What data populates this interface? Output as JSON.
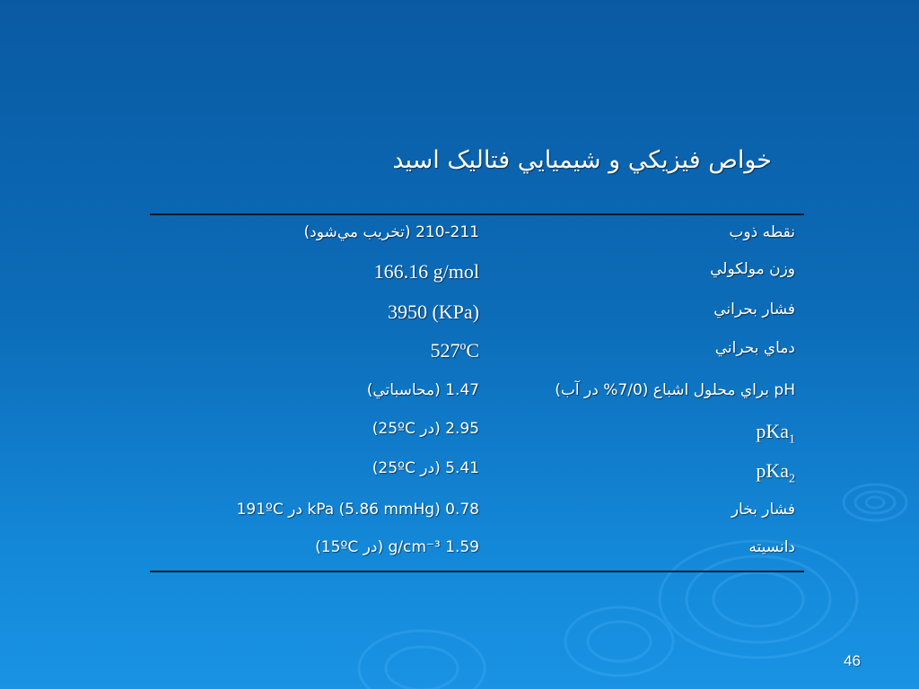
{
  "slide": {
    "title": "خواص فيزيكي و شيميايي فتاليک اسيد",
    "page_number": "46",
    "background_colors": [
      "#0a5aa3",
      "#1a93e4"
    ],
    "rows": [
      {
        "label": "نقطه ذوب",
        "value": "210-211 (تخريب مي‌شود)"
      },
      {
        "label": "وزن مولكولي",
        "value": "166.16 g/mol"
      },
      {
        "label": "فشار بحراني",
        "value": "3950 (KPa)"
      },
      {
        "label": "دماي بحراني",
        "value": "527ºC"
      },
      {
        "label": "pH براي محلول اشباع (7/0% در آب)",
        "value": "1.47 (محاسباتي)"
      },
      {
        "label": "pKa",
        "label_sub": "1",
        "value": "2.95 (در 25ºC)"
      },
      {
        "label": "pKa",
        "label_sub": "2",
        "value": "5.41 (در 25ºC)"
      },
      {
        "label": "فشار بخار",
        "value": "0.78 kPa (5.86 mmHg) در 191ºC"
      },
      {
        "label": "دانسيته",
        "value": "1.59 g/cm⁻³ (در 15ºC)"
      }
    ]
  }
}
